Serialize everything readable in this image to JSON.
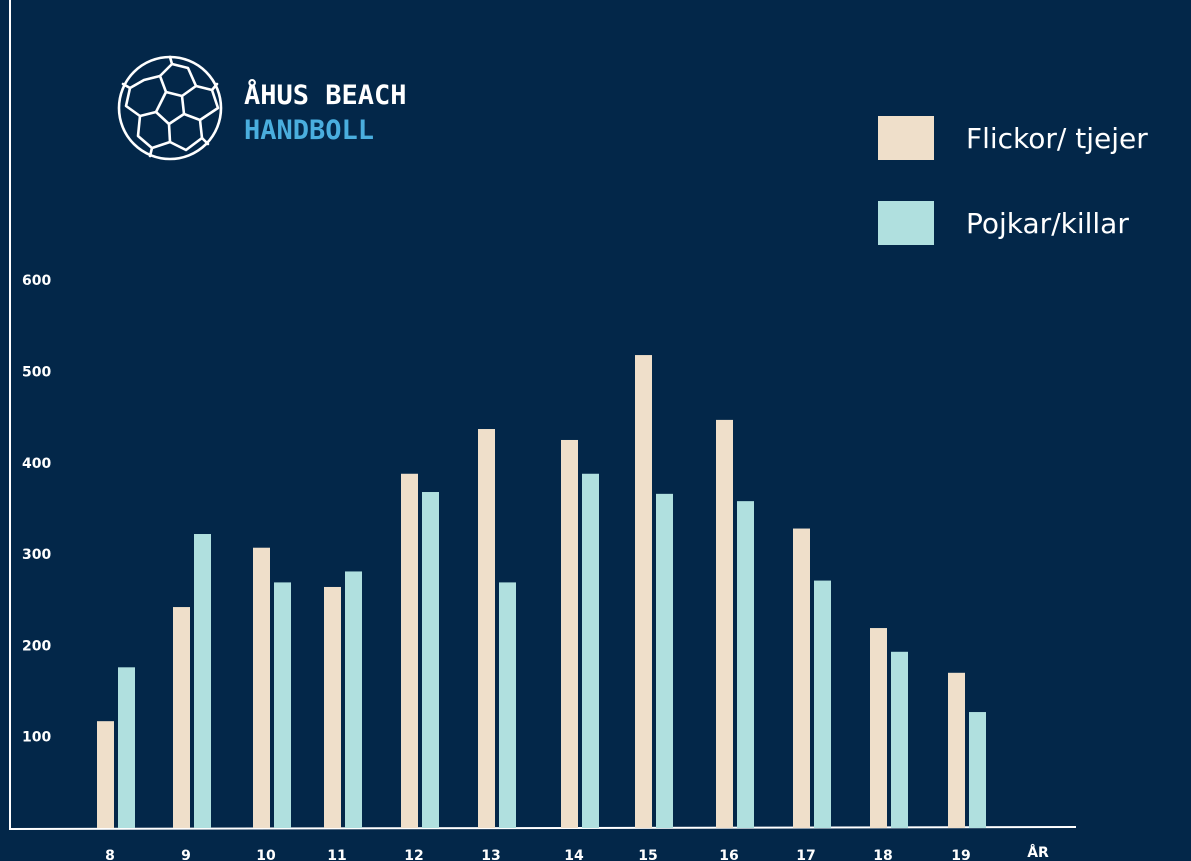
{
  "brand": {
    "line1": "ÅHUS BEACH",
    "line2": "HANDBOLL",
    "line1_color": "#ffffff",
    "line2_color": "#4aaede"
  },
  "colors": {
    "background": "#032749",
    "axis": "#ffffff"
  },
  "chart_data": {
    "type": "bar",
    "categories": [
      "8",
      "9",
      "10",
      "11",
      "12",
      "13",
      "14",
      "15",
      "16",
      "17",
      "18",
      "19"
    ],
    "series": [
      {
        "name": "Flickor/ tjejer",
        "color": "#efdfca",
        "values": [
          117,
          242,
          307,
          264,
          388,
          437,
          425,
          518,
          447,
          328,
          219,
          170
        ]
      },
      {
        "name": "Pojkar/killar",
        "color": "#b0e0df",
        "values": [
          176,
          322,
          269,
          281,
          368,
          269,
          388,
          366,
          358,
          271,
          193,
          127
        ]
      }
    ],
    "xlabel": "ÅR",
    "ylabel": "",
    "yticks": [
      100,
      200,
      300,
      400,
      500,
      600
    ],
    "ylim": [
      0,
      660
    ],
    "grid": false,
    "legend": "top-right"
  }
}
